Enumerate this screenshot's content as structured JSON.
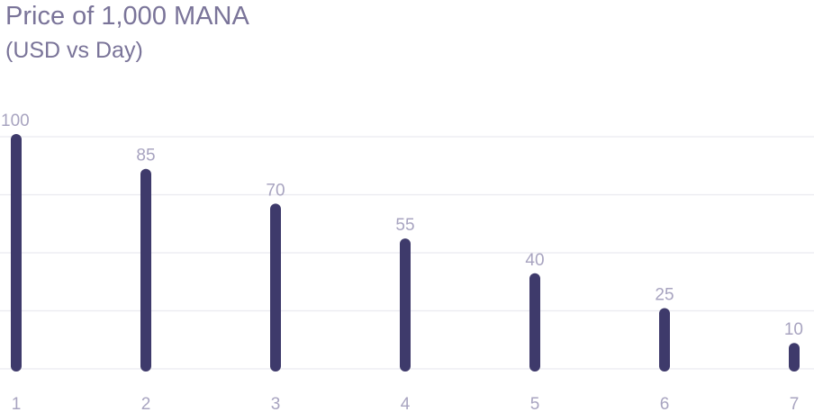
{
  "chart_data": {
    "type": "bar",
    "title": "Price of 1,000 MANA",
    "subtitle": "(USD vs Day)",
    "xlabel": "",
    "ylabel": "",
    "categories": [
      "1",
      "2",
      "3",
      "4",
      "5",
      "6",
      "7"
    ],
    "values": [
      100,
      85,
      70,
      55,
      40,
      25,
      10
    ],
    "ylim": [
      0,
      100
    ],
    "grid": true,
    "legend": "none",
    "colors": {
      "bar": "#3e3a6b",
      "value_label": "#a8a4c0",
      "tick_label": "#a8a4c0",
      "grid": "#ebeaf0"
    }
  }
}
